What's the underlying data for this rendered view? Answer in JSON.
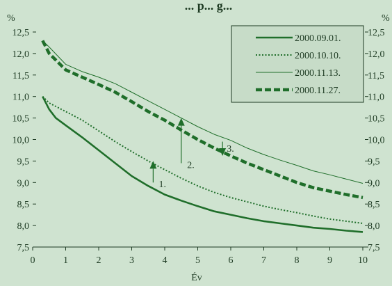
{
  "chart_data": {
    "type": "line",
    "title": "... p... g...",
    "xlabel": "Év",
    "ylabel_left": "%",
    "ylabel_right": "%",
    "xlim": [
      0,
      10
    ],
    "ylim": [
      7.5,
      12.5
    ],
    "xticks": [
      "0",
      "1",
      "2",
      "3",
      "4",
      "5",
      "6",
      "7",
      "8",
      "9",
      "10"
    ],
    "yticks": [
      "7,5",
      "8,0",
      "8,5",
      "9,0",
      "9,5",
      "10,0",
      "10,5",
      "11,0",
      "11,5",
      "12,0",
      "12,5"
    ],
    "grid": false,
    "legend_position": "top-right",
    "colors": {
      "background": "#cfe3d0",
      "line": "#1f6e2a",
      "text": "#1d3a22"
    },
    "series": [
      {
        "name": "2000.09.01.",
        "style": "solid-thick",
        "x": [
          0.3,
          0.5,
          0.7,
          1,
          1.5,
          2,
          2.5,
          3,
          3.5,
          4,
          4.5,
          5,
          5.5,
          6,
          6.5,
          7,
          7.5,
          8,
          8.5,
          9,
          9.5,
          10
        ],
        "y": [
          11.0,
          10.7,
          10.5,
          10.33,
          10.05,
          9.75,
          9.45,
          9.15,
          8.92,
          8.72,
          8.58,
          8.45,
          8.33,
          8.25,
          8.17,
          8.1,
          8.05,
          8.0,
          7.95,
          7.92,
          7.88,
          7.85
        ]
      },
      {
        "name": "2000.10.10.",
        "style": "dotted",
        "x": [
          0.3,
          0.5,
          1,
          1.5,
          2,
          2.5,
          3,
          3.5,
          4,
          4.5,
          5,
          5.5,
          6,
          6.5,
          7,
          7.5,
          8,
          8.5,
          9,
          9.5,
          10
        ],
        "y": [
          11.0,
          10.85,
          10.65,
          10.45,
          10.2,
          9.95,
          9.72,
          9.5,
          9.3,
          9.1,
          8.92,
          8.77,
          8.65,
          8.55,
          8.45,
          8.37,
          8.3,
          8.22,
          8.15,
          8.1,
          8.05
        ]
      },
      {
        "name": "2000.11.13.",
        "style": "solid-thin",
        "x": [
          0.3,
          0.5,
          1,
          1.5,
          2,
          2.5,
          3,
          3.5,
          4,
          4.5,
          5,
          5.5,
          6,
          6.5,
          7,
          7.5,
          8,
          8.5,
          9,
          9.5,
          10
        ],
        "y": [
          12.3,
          12.15,
          11.75,
          11.58,
          11.45,
          11.3,
          11.1,
          10.9,
          10.7,
          10.5,
          10.3,
          10.12,
          9.98,
          9.8,
          9.65,
          9.52,
          9.4,
          9.27,
          9.18,
          9.08,
          8.98
        ]
      },
      {
        "name": "2000.11.27.",
        "style": "dashed-thick",
        "x": [
          0.3,
          0.5,
          1,
          1.5,
          2,
          2.5,
          3,
          3.5,
          4,
          4.5,
          5,
          5.5,
          6,
          6.5,
          7,
          7.5,
          8,
          8.5,
          9,
          9.5,
          10
        ],
        "y": [
          12.3,
          12.0,
          11.62,
          11.45,
          11.28,
          11.1,
          10.88,
          10.65,
          10.45,
          10.22,
          10.0,
          9.8,
          9.62,
          9.45,
          9.3,
          9.15,
          9.0,
          8.88,
          8.8,
          8.72,
          8.65
        ]
      }
    ],
    "annotations": [
      {
        "label": "1.",
        "x_from": 3.65,
        "y_from": 9.0,
        "x_to": 3.65,
        "y_to": 9.5,
        "label_x": 3.82,
        "label_y": 8.97
      },
      {
        "label": "2.",
        "x_from": 4.5,
        "y_from": 9.45,
        "x_to": 4.5,
        "y_to": 10.5,
        "label_x": 4.68,
        "label_y": 9.42
      },
      {
        "label": "3.",
        "x_from": 5.75,
        "y_from": 9.95,
        "x_to": 5.75,
        "y_to": 9.62,
        "label_x": 5.88,
        "label_y": 9.8
      }
    ]
  }
}
